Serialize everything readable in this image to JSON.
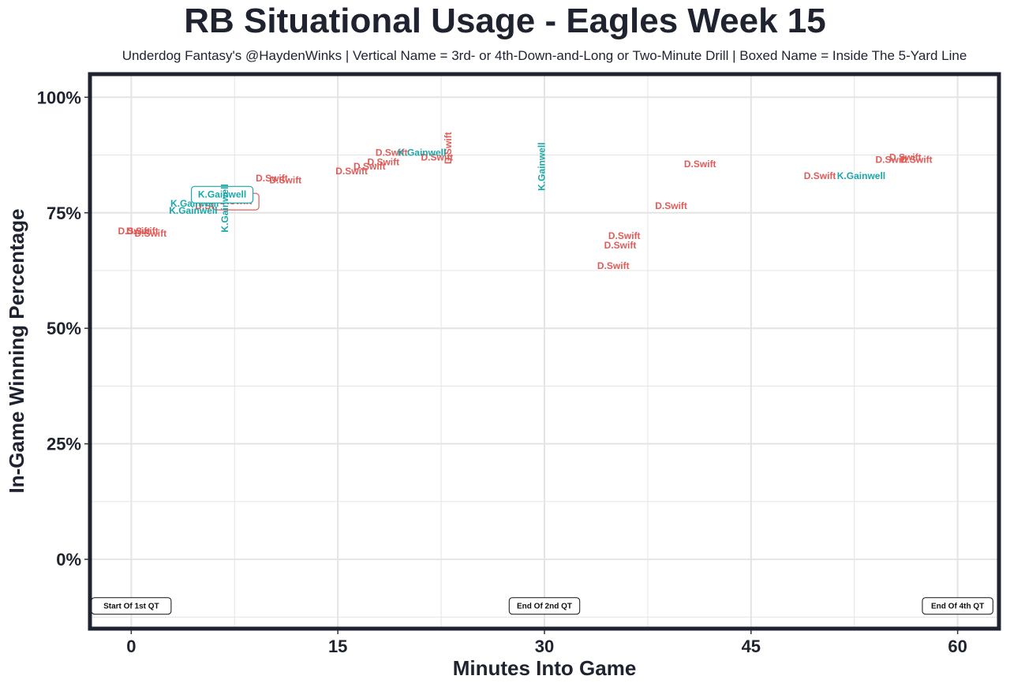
{
  "title": "RB Situational Usage - Eagles Week 15",
  "subtitle": "Underdog Fantasy's @HaydenWinks | Vertical Name = 3rd- or 4th-Down-and-Long or Two-Minute Drill | Boxed Name = Inside The 5-Yard Line",
  "colors": {
    "D.Swift": "#e05c59",
    "K.Gainwell": "#1aa8aa",
    "panel_border": "#1f2330",
    "grid": "#e4e4e4"
  },
  "chart_data": {
    "type": "scatter",
    "xlabel": "Minutes Into Game",
    "ylabel": "In-Game Winning Percentage",
    "xlim": [
      -3,
      63
    ],
    "ylim": [
      -15,
      105
    ],
    "x_ticks": [
      0,
      15,
      30,
      45,
      60
    ],
    "x_tick_labels": [
      "0",
      "15",
      "30",
      "45",
      "60"
    ],
    "y_ticks": [
      0,
      25,
      50,
      75,
      100
    ],
    "y_tick_labels": [
      "0%",
      "25%",
      "50%",
      "75%",
      "100%"
    ],
    "grid": true,
    "series": [
      {
        "name": "D.Swift",
        "points": [
          {
            "x": 0.2,
            "y": 71.0,
            "label": "D.Swift"
          },
          {
            "x": 0.8,
            "y": 71.0,
            "label": "D.Swift"
          },
          {
            "x": 1.4,
            "y": 70.5,
            "label": "D.Swift"
          },
          {
            "x": 5.8,
            "y": 76.5,
            "label": "D.Swift"
          },
          {
            "x": 7.6,
            "y": 77.5,
            "label": "D.Swift",
            "boxed": true
          },
          {
            "x": 10.2,
            "y": 82.5,
            "label": "D.Swift"
          },
          {
            "x": 11.2,
            "y": 82.0,
            "label": "D.Swift"
          },
          {
            "x": 16.0,
            "y": 84.0,
            "label": "D.Swift"
          },
          {
            "x": 17.3,
            "y": 85.0,
            "label": "D.Swift"
          },
          {
            "x": 18.3,
            "y": 86.0,
            "label": "D.Swift"
          },
          {
            "x": 18.9,
            "y": 88.0,
            "label": "D.Swift"
          },
          {
            "x": 22.2,
            "y": 87.0,
            "label": "D.Swift"
          },
          {
            "x": 23.0,
            "y": 89.0,
            "label": "D.Swift",
            "vertical": true
          },
          {
            "x": 35.8,
            "y": 70.0,
            "label": "D.Swift"
          },
          {
            "x": 35.5,
            "y": 68.0,
            "label": "D.Swift"
          },
          {
            "x": 35.0,
            "y": 63.5,
            "label": "D.Swift"
          },
          {
            "x": 39.2,
            "y": 76.5,
            "label": "D.Swift"
          },
          {
            "x": 41.3,
            "y": 85.5,
            "label": "D.Swift"
          },
          {
            "x": 50.0,
            "y": 83.0,
            "label": "D.Swift"
          },
          {
            "x": 55.2,
            "y": 86.5,
            "label": "D.Swift"
          },
          {
            "x": 56.2,
            "y": 87.0,
            "label": "D.Swift"
          },
          {
            "x": 57.0,
            "y": 86.5,
            "label": "D.Swift"
          }
        ]
      },
      {
        "name": "K.Gainwell",
        "points": [
          {
            "x": 4.6,
            "y": 77.0,
            "label": "K.Gainwell"
          },
          {
            "x": 4.5,
            "y": 75.5,
            "label": "K.Gainwell"
          },
          {
            "x": 6.6,
            "y": 79.0,
            "label": "K.Gainwell",
            "boxed": true
          },
          {
            "x": 6.8,
            "y": 76.0,
            "label": "K.Gainwell",
            "vertical": true
          },
          {
            "x": 21.1,
            "y": 88.0,
            "label": "K.Gainwell"
          },
          {
            "x": 29.8,
            "y": 85.0,
            "label": "K.Gainwell",
            "vertical": true
          },
          {
            "x": 53.0,
            "y": 83.0,
            "label": "K.Gainwell"
          }
        ]
      }
    ],
    "annotations": [
      {
        "x": 0,
        "y": -10,
        "text": "Start Of 1st QT"
      },
      {
        "x": 30,
        "y": -10,
        "text": "End Of 2nd QT"
      },
      {
        "x": 60,
        "y": -10,
        "text": "End Of 4th QT"
      }
    ]
  }
}
